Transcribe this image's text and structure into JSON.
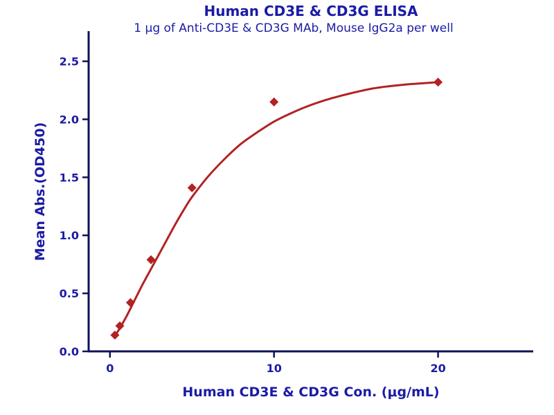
{
  "colors": {
    "text": "#1b1ba6",
    "axis": "#10105a",
    "curve": "#b22222",
    "marker": "#b22222"
  },
  "chart_data": {
    "type": "scatter",
    "title": "Human CD3E & CD3G ELISA",
    "subtitle": "1 μg of Anti-CD3E & CD3G MAb, Mouse IgG2a per well",
    "xlabel": "Human CD3E & CD3G Con. (μg/mL)",
    "ylabel": "Mean Abs.(OD450)",
    "xlim": [
      -1.3,
      25.8
    ],
    "ylim": [
      0,
      2.76
    ],
    "x_ticks": [
      0,
      10,
      20
    ],
    "x_tick_labels": [
      "0",
      "10",
      "20"
    ],
    "y_ticks": [
      0.0,
      0.5,
      1.0,
      1.5,
      2.0,
      2.5
    ],
    "y_tick_labels": [
      "0.0",
      "0.5",
      "1.0",
      "1.5",
      "2.0",
      "2.5"
    ],
    "grid": false,
    "legend": null,
    "points": {
      "x": [
        0.3,
        0.6,
        1.25,
        2.5,
        5,
        10,
        20
      ],
      "y": [
        0.14,
        0.22,
        0.42,
        0.79,
        1.41,
        2.15,
        2.32
      ]
    },
    "fit_curve": {
      "x": [
        0.3,
        0.6,
        1,
        1.5,
        2,
        2.5,
        3,
        3.5,
        4,
        4.5,
        5,
        6,
        7,
        8,
        9,
        10,
        11,
        12,
        13,
        14,
        15,
        16,
        17,
        18,
        19,
        20
      ],
      "y": [
        0.13,
        0.2,
        0.3,
        0.44,
        0.58,
        0.71,
        0.84,
        0.97,
        1.1,
        1.22,
        1.33,
        1.51,
        1.66,
        1.79,
        1.89,
        1.98,
        2.05,
        2.11,
        2.16,
        2.2,
        2.235,
        2.265,
        2.285,
        2.3,
        2.31,
        2.32
      ]
    }
  }
}
